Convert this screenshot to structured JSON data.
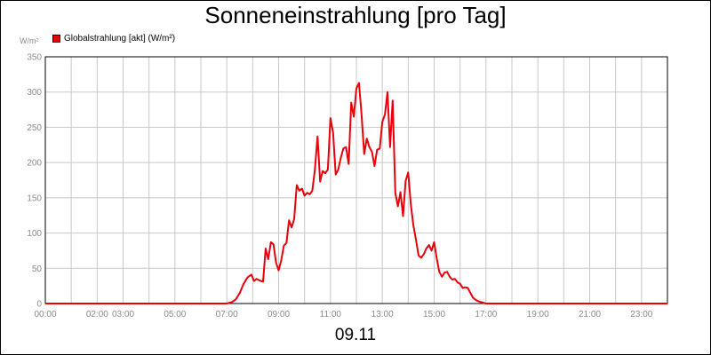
{
  "chart_data": {
    "type": "line",
    "title": "Sonneneinstrahlung [pro Tag]",
    "xlabel": "09.11",
    "ylabel": "W/m²",
    "ylim": [
      0,
      350
    ],
    "yticks": [
      0,
      50,
      100,
      150,
      200,
      250,
      300,
      350
    ],
    "xticks": [
      "00:00",
      "02:00",
      "03:00",
      "05:00",
      "07:00",
      "09:00",
      "11:00",
      "13:00",
      "15:00",
      "17:00",
      "19:00",
      "21:00",
      "23:00"
    ],
    "xtick_hours": [
      0,
      2,
      3,
      5,
      7,
      9,
      11,
      13,
      15,
      17,
      19,
      21,
      23
    ],
    "xlim": [
      0,
      24
    ],
    "grid": true,
    "legend_position": "top-left",
    "series": [
      {
        "name": "Globalstrahlung [akt] (W/m²)",
        "color": "#e8000b",
        "x": [
          0,
          7.0,
          7.2,
          7.35,
          7.5,
          7.65,
          7.8,
          7.95,
          8.05,
          8.15,
          8.25,
          8.4,
          8.5,
          8.6,
          8.7,
          8.8,
          8.9,
          9.0,
          9.1,
          9.2,
          9.3,
          9.4,
          9.5,
          9.6,
          9.7,
          9.8,
          9.9,
          10.0,
          10.1,
          10.2,
          10.3,
          10.4,
          10.5,
          10.6,
          10.7,
          10.8,
          10.9,
          11.0,
          11.1,
          11.2,
          11.3,
          11.4,
          11.5,
          11.6,
          11.7,
          11.8,
          11.9,
          12.0,
          12.1,
          12.15,
          12.2,
          12.3,
          12.4,
          12.5,
          12.6,
          12.7,
          12.8,
          12.9,
          13.0,
          13.1,
          13.2,
          13.3,
          13.4,
          13.5,
          13.6,
          13.7,
          13.8,
          13.9,
          14.0,
          14.1,
          14.2,
          14.3,
          14.4,
          14.5,
          14.6,
          14.7,
          14.8,
          14.9,
          15.0,
          15.1,
          15.2,
          15.3,
          15.4,
          15.5,
          15.6,
          15.7,
          15.8,
          15.9,
          16.0,
          16.1,
          16.2,
          16.3,
          16.4,
          16.5,
          16.65,
          16.8,
          17.0,
          24
        ],
        "y": [
          0,
          0,
          2,
          6,
          15,
          28,
          37,
          41,
          32,
          35,
          33,
          31,
          78,
          63,
          87,
          84,
          58,
          47,
          61,
          82,
          86,
          118,
          108,
          120,
          168,
          160,
          163,
          153,
          157,
          155,
          160,
          190,
          237,
          173,
          188,
          185,
          190,
          263,
          242,
          183,
          190,
          207,
          220,
          222,
          198,
          285,
          265,
          305,
          313,
          290,
          268,
          212,
          234,
          222,
          215,
          195,
          218,
          220,
          258,
          268,
          300,
          222,
          288,
          157,
          138,
          158,
          124,
          174,
          186,
          140,
          110,
          90,
          68,
          65,
          70,
          78,
          83,
          75,
          87,
          64,
          45,
          38,
          44,
          45,
          38,
          34,
          35,
          30,
          28,
          22,
          23,
          22,
          15,
          8,
          4,
          2,
          0,
          0
        ]
      }
    ]
  }
}
